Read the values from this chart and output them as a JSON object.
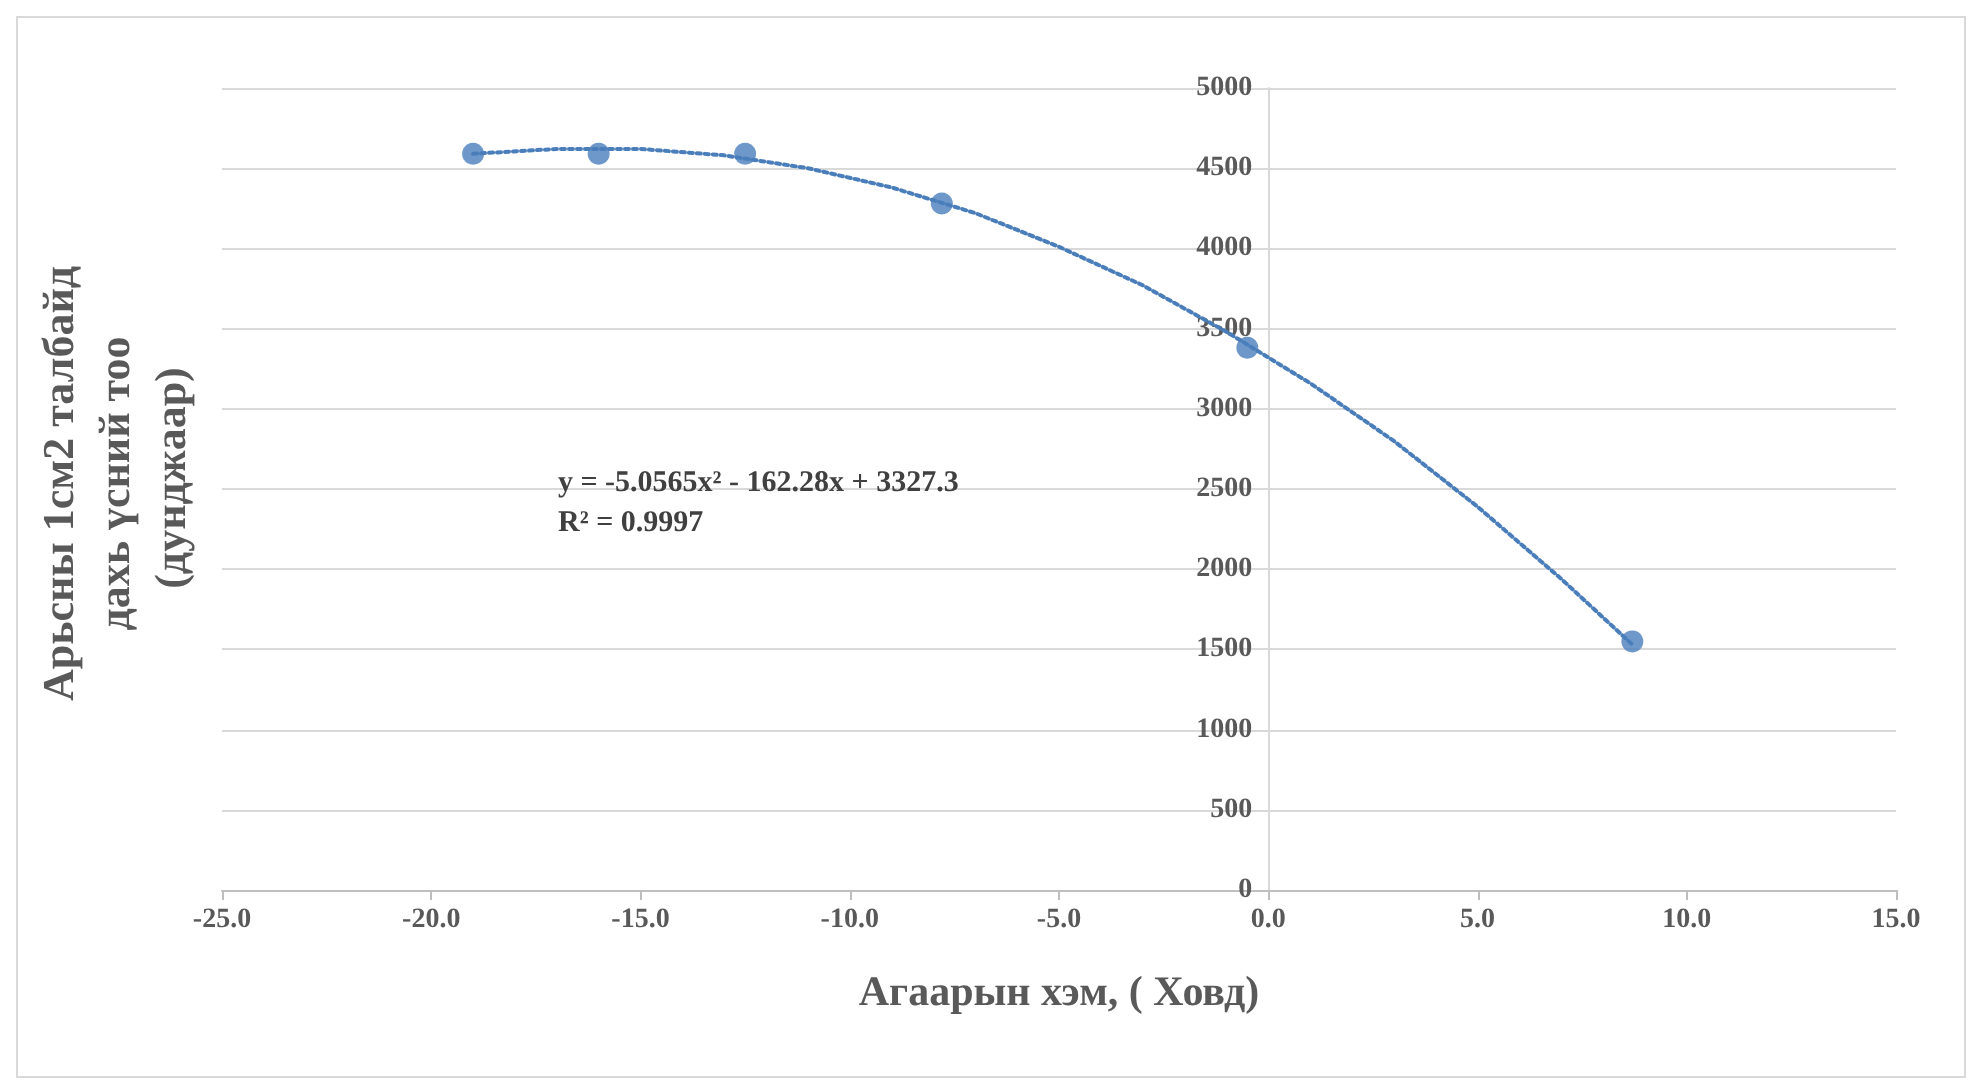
{
  "chart_data": {
    "type": "scatter",
    "xlabel": "Агаарын хэм, ( Ховд)",
    "ylabel": "Арьсны 1см2 талбайд дахь үсний тоо (дунджаар)",
    "xlim": [
      -25,
      15
    ],
    "xticks": [
      {
        "value": -25,
        "label": "-25.0"
      },
      {
        "value": -20,
        "label": "-20.0"
      },
      {
        "value": -15,
        "label": "-15.0"
      },
      {
        "value": -10,
        "label": "-10.0"
      },
      {
        "value": -5,
        "label": "-5.0"
      },
      {
        "value": 0,
        "label": "0.0"
      },
      {
        "value": 5,
        "label": "5.0"
      },
      {
        "value": 10,
        "label": "10.0"
      },
      {
        "value": 15,
        "label": "15.0"
      }
    ],
    "ylim": [
      0,
      5000
    ],
    "yticks": [
      0,
      500,
      1000,
      1500,
      2000,
      2500,
      3000,
      3500,
      4000,
      4500,
      5000
    ],
    "grid": "y",
    "series": [
      {
        "color": "#4a7ebb",
        "marker": "circle",
        "x": [
          -19.0,
          -16.0,
          -12.5,
          -7.8,
          -0.5,
          8.7
        ],
        "values": [
          4590,
          4590,
          4590,
          4280,
          3380,
          1550
        ]
      },
      {
        "type": "line",
        "color": "#4a7ebb",
        "marker": "none",
        "line_style": "dotted",
        "x": [
          -19,
          -17,
          -15,
          -13,
          -11,
          -9,
          -7,
          -5,
          -3,
          -1,
          1,
          3,
          5,
          7,
          8.7
        ],
        "values": [
          4590,
          4620,
          4620,
          4580,
          4500,
          4380,
          4220,
          4010,
          3770,
          3480,
          3160,
          2800,
          2390,
          1940,
          1530
        ]
      }
    ],
    "annotations": [
      "y = -5.0565x² - 162.28x + 3327.3",
      "R² = 0.9997"
    ]
  }
}
